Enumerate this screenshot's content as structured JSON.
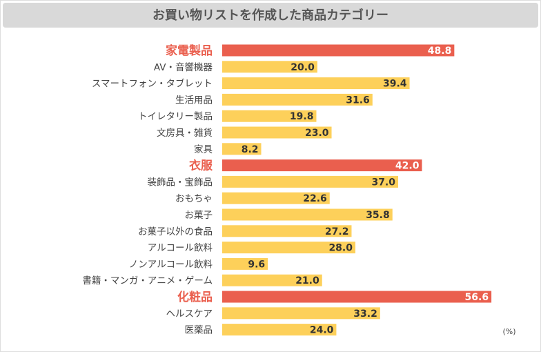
{
  "chart_data": {
    "type": "bar",
    "title": "お買い物リストを作成した商品カテゴリー",
    "unit": "(%)",
    "categories": [
      "家電製品",
      "AV・音響機器",
      "スマートフォン・タブレット",
      "生活用品",
      "トイレタリー製品",
      "文房具・雑貨",
      "家具",
      "衣服",
      "装飾品・宝飾品",
      "おもちゃ",
      "お菓子",
      "お菓子以外の食品",
      "アルコール飲料",
      "ノンアルコール飲料",
      "書籍・マンガ・アニメ・ゲーム",
      "化粧品",
      "ヘルスケア",
      "医薬品"
    ],
    "values": [
      48.8,
      20,
      39.4,
      31.6,
      19.8,
      23,
      8.2,
      42,
      37,
      22.6,
      35.8,
      27.2,
      28,
      9.6,
      21,
      56.6,
      33.2,
      24
    ],
    "value_labels": [
      "48.8",
      "20.0",
      "39.4",
      "31.6",
      "19.8",
      "23.0",
      "8.2",
      "42.0",
      "37.0",
      "22.6",
      "35.8",
      "27.2",
      "28.0",
      "9.6",
      "21.0",
      "56.6",
      "33.2",
      "24.0"
    ],
    "color": "#fdd05a",
    "colors": [
      "#ea5f4e",
      "#fdd05a",
      "#fdd05a",
      "#fdd05a",
      "#fdd05a",
      "#fdd05a",
      "#fdd05a",
      "#ea5f4e",
      "#fdd05a",
      "#fdd05a",
      "#fdd05a",
      "#fdd05a",
      "#fdd05a",
      "#fdd05a",
      "#fdd05a",
      "#ea5f4e",
      "#fdd05a",
      "#fdd05a"
    ],
    "xlim": [
      0,
      65
    ]
  }
}
